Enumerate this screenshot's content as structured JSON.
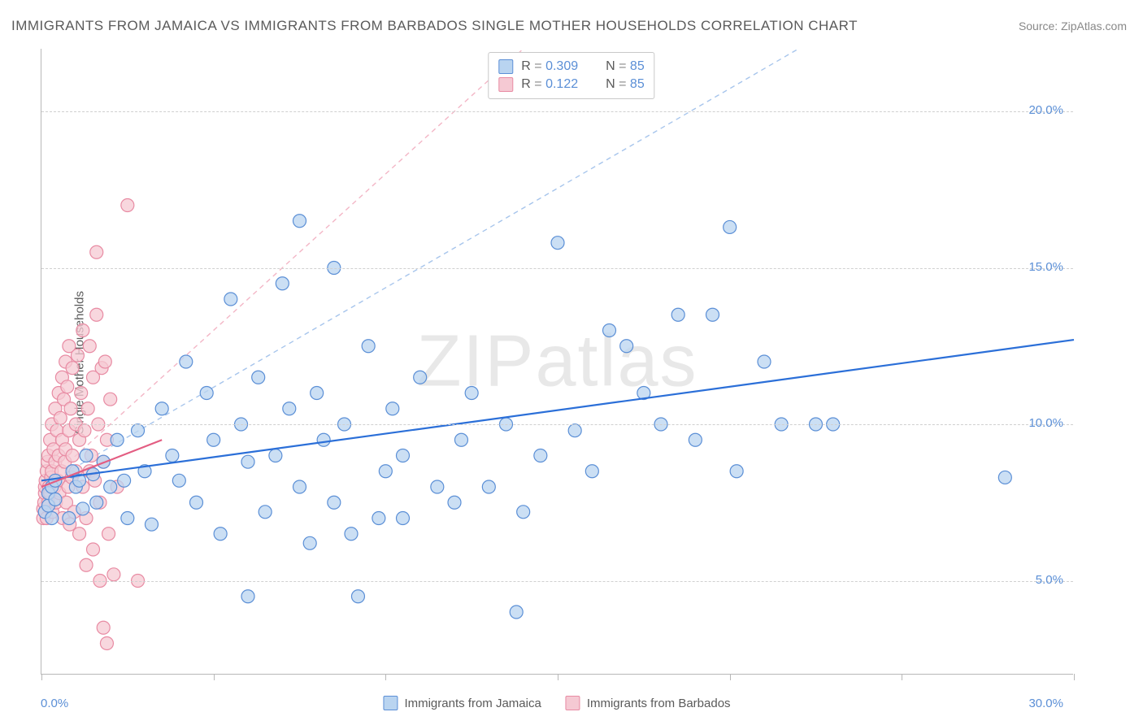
{
  "title": "IMMIGRANTS FROM JAMAICA VS IMMIGRANTS FROM BARBADOS SINGLE MOTHER HOUSEHOLDS CORRELATION CHART",
  "source": "Source: ZipAtlas.com",
  "watermark": "ZIPatlas",
  "ylabel": "Single Mother Households",
  "chart": {
    "type": "scatter",
    "xlim": [
      0,
      30
    ],
    "ylim": [
      2,
      22
    ],
    "x_ticks": [
      0,
      5,
      10,
      15,
      20,
      25,
      30
    ],
    "y_ticks": [
      5,
      10,
      15,
      20
    ],
    "y_tick_labels": [
      "5.0%",
      "10.0%",
      "15.0%",
      "20.0%"
    ],
    "x_start_label": "0.0%",
    "x_end_label": "30.0%",
    "grid_color": "#d0d0d0",
    "background_color": "#ffffff",
    "axis_color": "#b8b8b8",
    "marker_radius": 8,
    "marker_stroke_width": 1.2,
    "trend_line_width": 2.2
  },
  "series": [
    {
      "name": "Immigrants from Jamaica",
      "fill": "#b9d4f0",
      "stroke": "#5b8fd6",
      "trend_color": "#2b6fd8",
      "trend_dashed": false,
      "trend": {
        "x1": 0,
        "y1": 8.2,
        "x2": 30,
        "y2": 12.7
      },
      "diag": {
        "x1": 0,
        "y1": 8.0,
        "x2": 22,
        "y2": 22
      },
      "diag_color": "#a7c5ec",
      "legend": {
        "R": "0.309",
        "N": "85"
      },
      "points": [
        [
          0.1,
          7.2
        ],
        [
          0.2,
          7.4
        ],
        [
          0.2,
          7.8
        ],
        [
          0.3,
          8.0
        ],
        [
          0.3,
          7.0
        ],
        [
          0.4,
          8.2
        ],
        [
          0.4,
          7.6
        ],
        [
          0.8,
          7.0
        ],
        [
          0.9,
          8.5
        ],
        [
          1.0,
          8.0
        ],
        [
          1.1,
          8.2
        ],
        [
          1.2,
          7.3
        ],
        [
          1.3,
          9.0
        ],
        [
          1.5,
          8.4
        ],
        [
          1.6,
          7.5
        ],
        [
          1.8,
          8.8
        ],
        [
          2.0,
          8.0
        ],
        [
          2.2,
          9.5
        ],
        [
          2.4,
          8.2
        ],
        [
          2.5,
          7.0
        ],
        [
          2.8,
          9.8
        ],
        [
          3.0,
          8.5
        ],
        [
          3.2,
          6.8
        ],
        [
          3.5,
          10.5
        ],
        [
          3.8,
          9.0
        ],
        [
          4.0,
          8.2
        ],
        [
          4.2,
          12.0
        ],
        [
          4.5,
          7.5
        ],
        [
          4.8,
          11.0
        ],
        [
          5.0,
          9.5
        ],
        [
          5.2,
          6.5
        ],
        [
          5.5,
          14.0
        ],
        [
          5.8,
          10.0
        ],
        [
          6.0,
          8.8
        ],
        [
          6.0,
          4.5
        ],
        [
          6.3,
          11.5
        ],
        [
          6.5,
          7.2
        ],
        [
          6.8,
          9.0
        ],
        [
          7.0,
          14.5
        ],
        [
          7.2,
          10.5
        ],
        [
          7.5,
          8.0
        ],
        [
          7.5,
          16.5
        ],
        [
          7.8,
          6.2
        ],
        [
          8.0,
          11.0
        ],
        [
          8.2,
          9.5
        ],
        [
          8.5,
          7.5
        ],
        [
          8.5,
          15.0
        ],
        [
          8.8,
          10.0
        ],
        [
          9.0,
          6.5
        ],
        [
          9.2,
          4.5
        ],
        [
          9.5,
          12.5
        ],
        [
          9.8,
          7.0
        ],
        [
          10.0,
          8.5
        ],
        [
          10.2,
          10.5
        ],
        [
          10.5,
          9.0
        ],
        [
          10.5,
          7.0
        ],
        [
          11.0,
          11.5
        ],
        [
          11.5,
          8.0
        ],
        [
          12.0,
          7.5
        ],
        [
          12.2,
          9.5
        ],
        [
          12.5,
          11.0
        ],
        [
          13.0,
          8.0
        ],
        [
          13.5,
          10.0
        ],
        [
          13.8,
          4.0
        ],
        [
          14.0,
          7.2
        ],
        [
          14.5,
          9.0
        ],
        [
          15.0,
          15.8
        ],
        [
          15.5,
          9.8
        ],
        [
          16.0,
          8.5
        ],
        [
          16.5,
          13.0
        ],
        [
          17.0,
          12.5
        ],
        [
          17.5,
          11.0
        ],
        [
          18.0,
          10.0
        ],
        [
          18.5,
          13.5
        ],
        [
          19.0,
          9.5
        ],
        [
          19.5,
          13.5
        ],
        [
          20.0,
          16.3
        ],
        [
          20.2,
          8.5
        ],
        [
          21.0,
          12.0
        ],
        [
          21.5,
          10.0
        ],
        [
          22.5,
          10.0
        ],
        [
          23.0,
          10.0
        ],
        [
          28.0,
          8.3
        ]
      ]
    },
    {
      "name": "Immigrants from Barbados",
      "fill": "#f5c9d3",
      "stroke": "#e88ba3",
      "trend_color": "#e35d82",
      "trend_dashed": false,
      "trend": {
        "x1": 0,
        "y1": 8.0,
        "x2": 3.5,
        "y2": 9.5
      },
      "diag": {
        "x1": 0,
        "y1": 8.0,
        "x2": 14,
        "y2": 22
      },
      "diag_color": "#f3b6c6",
      "legend": {
        "R": "0.122",
        "N": "85"
      },
      "points": [
        [
          0.05,
          7.0
        ],
        [
          0.05,
          7.3
        ],
        [
          0.08,
          7.5
        ],
        [
          0.1,
          7.8
        ],
        [
          0.1,
          8.0
        ],
        [
          0.1,
          7.2
        ],
        [
          0.12,
          8.2
        ],
        [
          0.15,
          8.5
        ],
        [
          0.15,
          7.0
        ],
        [
          0.18,
          8.8
        ],
        [
          0.2,
          9.0
        ],
        [
          0.2,
          7.5
        ],
        [
          0.22,
          8.0
        ],
        [
          0.25,
          9.5
        ],
        [
          0.25,
          7.8
        ],
        [
          0.28,
          8.3
        ],
        [
          0.3,
          10.0
        ],
        [
          0.3,
          8.5
        ],
        [
          0.32,
          7.2
        ],
        [
          0.35,
          9.2
        ],
        [
          0.38,
          8.0
        ],
        [
          0.4,
          10.5
        ],
        [
          0.4,
          8.8
        ],
        [
          0.42,
          7.5
        ],
        [
          0.45,
          9.8
        ],
        [
          0.48,
          8.2
        ],
        [
          0.5,
          11.0
        ],
        [
          0.5,
          9.0
        ],
        [
          0.52,
          7.8
        ],
        [
          0.55,
          10.2
        ],
        [
          0.58,
          8.5
        ],
        [
          0.6,
          11.5
        ],
        [
          0.6,
          9.5
        ],
        [
          0.62,
          7.0
        ],
        [
          0.65,
          10.8
        ],
        [
          0.68,
          8.8
        ],
        [
          0.7,
          12.0
        ],
        [
          0.7,
          9.2
        ],
        [
          0.72,
          7.5
        ],
        [
          0.75,
          11.2
        ],
        [
          0.78,
          8.0
        ],
        [
          0.8,
          12.5
        ],
        [
          0.8,
          9.8
        ],
        [
          0.82,
          6.8
        ],
        [
          0.85,
          10.5
        ],
        [
          0.88,
          8.3
        ],
        [
          0.9,
          11.8
        ],
        [
          0.9,
          9.0
        ],
        [
          0.95,
          7.2
        ],
        [
          1.0,
          10.0
        ],
        [
          1.0,
          8.5
        ],
        [
          1.05,
          12.2
        ],
        [
          1.1,
          9.5
        ],
        [
          1.1,
          6.5
        ],
        [
          1.15,
          11.0
        ],
        [
          1.2,
          8.0
        ],
        [
          1.2,
          13.0
        ],
        [
          1.25,
          9.8
        ],
        [
          1.3,
          7.0
        ],
        [
          1.3,
          5.5
        ],
        [
          1.35,
          10.5
        ],
        [
          1.4,
          8.5
        ],
        [
          1.4,
          12.5
        ],
        [
          1.45,
          9.0
        ],
        [
          1.5,
          6.0
        ],
        [
          1.5,
          11.5
        ],
        [
          1.55,
          8.2
        ],
        [
          1.6,
          13.5
        ],
        [
          1.6,
          15.5
        ],
        [
          1.65,
          10.0
        ],
        [
          1.7,
          7.5
        ],
        [
          1.7,
          5.0
        ],
        [
          1.75,
          11.8
        ],
        [
          1.8,
          8.8
        ],
        [
          1.8,
          3.5
        ],
        [
          1.85,
          12.0
        ],
        [
          1.9,
          9.5
        ],
        [
          1.9,
          3.0
        ],
        [
          1.95,
          6.5
        ],
        [
          2.0,
          10.8
        ],
        [
          2.1,
          5.2
        ],
        [
          2.2,
          8.0
        ],
        [
          2.5,
          17.0
        ],
        [
          2.8,
          5.0
        ]
      ]
    }
  ],
  "bottom_legend": [
    {
      "label": "Immigrants from Jamaica",
      "fill": "#b9d4f0",
      "stroke": "#5b8fd6"
    },
    {
      "label": "Immigrants from Barbados",
      "fill": "#f5c9d3",
      "stroke": "#e88ba3"
    }
  ]
}
